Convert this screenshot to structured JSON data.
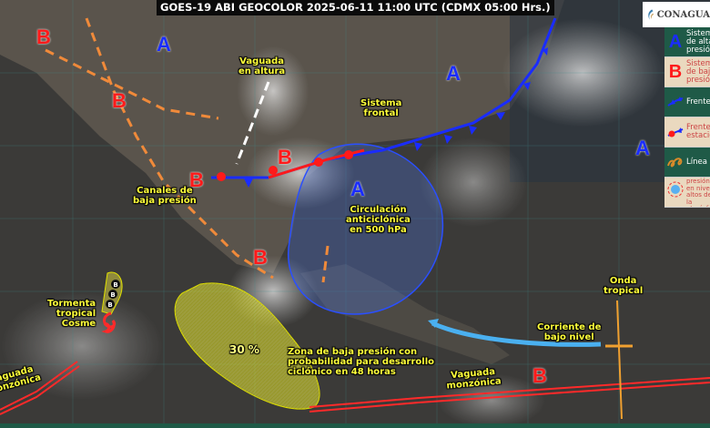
{
  "title": "GOES-19 ABI GEOCOLOR 2025-06-11 11:00 UTC (CDMX  05:00 Hrs.)",
  "logo": {
    "text": "CONAGUA"
  },
  "legend": [
    {
      "icon": "A",
      "text": "Sistema de alta presión",
      "color": "#1a2cff"
    },
    {
      "icon": "B",
      "text": "Sistema de baja presión",
      "color": "#ff1a1a"
    },
    {
      "icon": "cold-front",
      "text": "Frente frío"
    },
    {
      "icon": "stationary-front",
      "text": "Frente estacionario"
    },
    {
      "icon": "dry-line",
      "text": "Línea seca"
    },
    {
      "icon": "high-upper",
      "text": "Alta presión en niveles altos de la atmósfera"
    }
  ],
  "labels": {
    "vaguada_altura": "Vaguada\nen altura",
    "sistema_frontal": "Sistema\nfrontal",
    "canales": "Canales de\nbaja presión",
    "circulacion": "Circulación\nanticiclónica\nen 500 hPa",
    "tormenta": "Tormenta\ntropical\nCosme",
    "zona_baja": "Zona de baja presión con\nprobabilidad para desarrollo\nciclónico en 48 horas",
    "percent": "30 %",
    "onda": "Onda\ntropical",
    "corriente": "Corriente de\nbajo nivel",
    "vaguada_monzonica_e": "Vaguada\nmonzónica",
    "vaguada_monzonica_w": "Vaguada\nmonzónica"
  },
  "pressure_letters": {
    "high": "A",
    "low": "B",
    "cosme_track": "B"
  },
  "colors": {
    "high": "#1a2cff",
    "low": "#ff1a1a",
    "legend_dark": "#1f5a47",
    "legend_light": "#ead9bf",
    "label": "#ffff3a"
  }
}
